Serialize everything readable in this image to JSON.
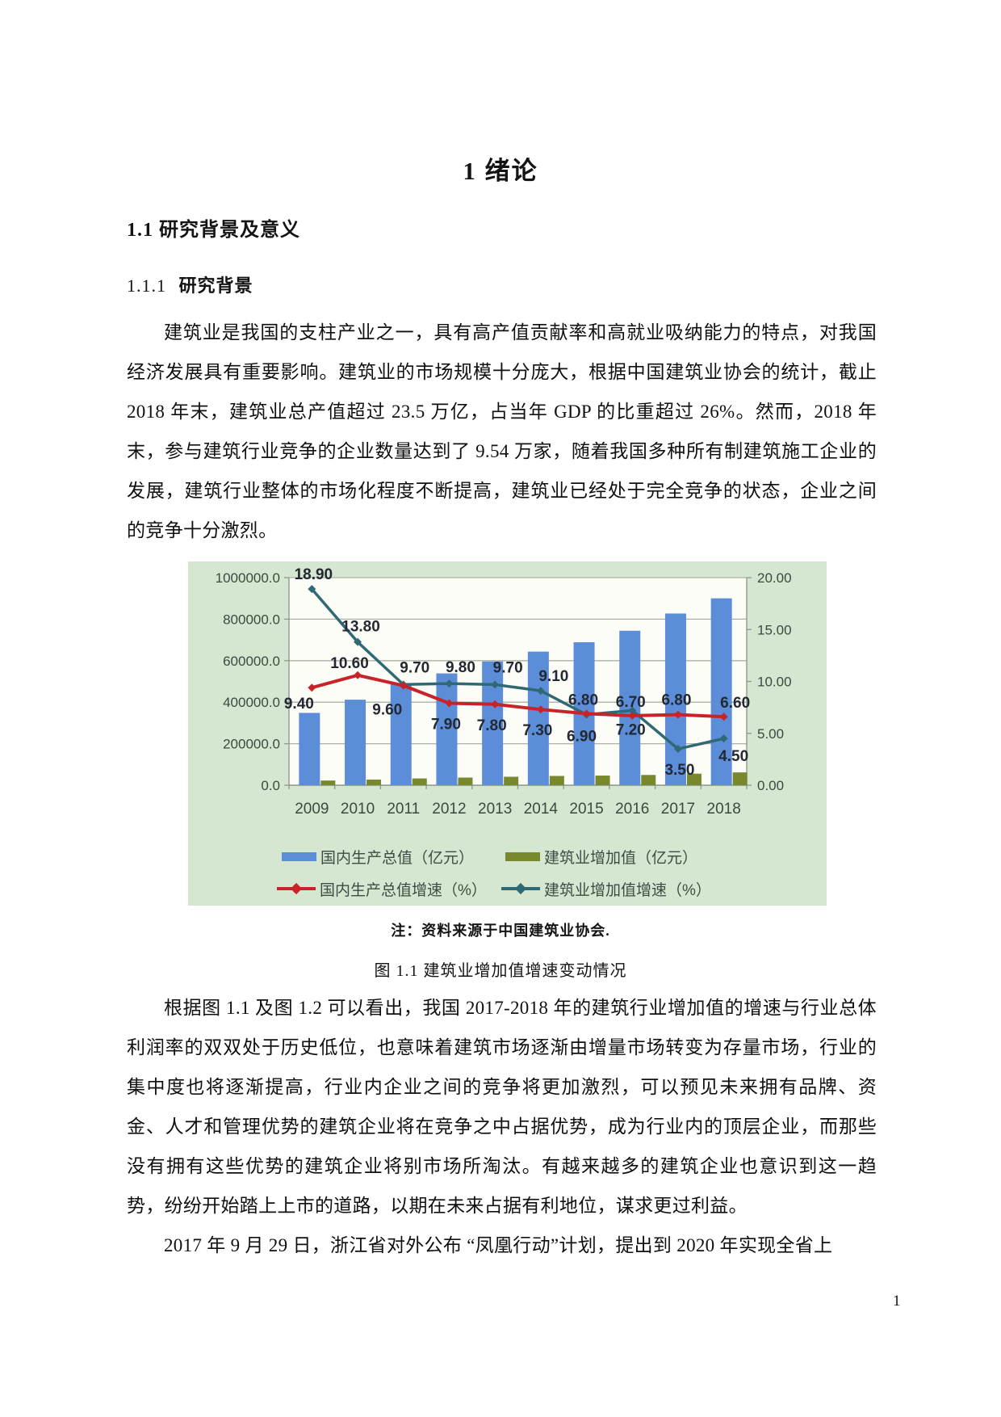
{
  "page": {
    "title": "1 绪论",
    "page_number": "1"
  },
  "sections": {
    "h2": "1.1 研究背景及意义",
    "h3_num": "1.1.1",
    "h3_title": "研究背景"
  },
  "paragraphs": {
    "p1": "建筑业是我国的支柱产业之一，具有高产值贡献率和高就业吸纳能力的特点，对我国经济发展具有重要影响。建筑业的市场规模十分庞大，根据中国建筑业协会的统计，截止 2018 年末，建筑业总产值超过 23.5 万亿，占当年 GDP 的比重超过 26%。然而，2018 年末，参与建筑行业竞争的企业数量达到了 9.54 万家，随着我国多种所有制建筑施工企业的发展，建筑行业整体的市场化程度不断提高，建筑业已经处于完全竞争的状态，企业之间的竞争十分激烈。",
    "p2": "根据图 1.1 及图 1.2 可以看出，我国 2017-2018 年的建筑行业增加值的增速与行业总体利润率的双双处于历史低位，也意味着建筑市场逐渐由增量市场转变为存量市场，行业的集中度也将逐渐提高，行业内企业之间的竞争将更加激烈，可以预见未来拥有品牌、资金、人才和管理优势的建筑企业将在竞争之中占据优势，成为行业内的顶层企业，而那些没有拥有这些优势的建筑企业将别市场所淘汰。有越来越多的建筑企业也意识到这一趋势，纷纷开始踏上上市的道路，以期在未来占据有利地位，谋求更过利益。",
    "p3": "2017 年 9 月 29 日，浙江省对外公布 “凤凰行动”计划，提出到 2020 年实现全省上"
  },
  "figure": {
    "note": "注：资料来源于中国建筑业协会.",
    "caption": "图 1.1 建筑业增加值增速变动情况"
  },
  "chart_data": {
    "type": "bar+line-combo",
    "categories": [
      "2009",
      "2010",
      "2011",
      "2012",
      "2013",
      "2014",
      "2015",
      "2016",
      "2017",
      "2018"
    ],
    "series": [
      {
        "name": "国内生产总值（亿元）",
        "type": "bar",
        "axis": "left",
        "color": "#5b8dd9",
        "values": [
          348500,
          412100,
          487900,
          538600,
          596300,
          643600,
          688900,
          744100,
          827100,
          900300
        ]
      },
      {
        "name": "建筑业增加值（亿元）",
        "type": "bar",
        "axis": "left",
        "color": "#78882d",
        "values": [
          22700,
          27300,
          32800,
          36900,
          40900,
          44800,
          46500,
          49500,
          55700,
          61800
        ]
      },
      {
        "name": "国内生产总值增速（%）",
        "type": "line",
        "axis": "right",
        "color": "#c9232a",
        "marker": "diamond",
        "values": [
          9.4,
          10.6,
          9.6,
          7.9,
          7.8,
          7.3,
          6.9,
          6.7,
          6.8,
          6.6
        ]
      },
      {
        "name": "建筑业增加值增速（%）",
        "type": "line",
        "axis": "right",
        "color": "#2f6a74",
        "marker": "diamond",
        "values": [
          18.9,
          13.8,
          9.7,
          9.8,
          9.7,
          9.1,
          6.8,
          7.2,
          3.5,
          4.5
        ]
      }
    ],
    "left_axis_ticks": [
      "1000000.0",
      "800000.0",
      "600000.0",
      "400000.0",
      "200000.0",
      "0.0"
    ],
    "right_axis_ticks": [
      "20.00",
      "15.00",
      "10.00",
      "5.00",
      "0.00"
    ],
    "left_axis_range": [
      0,
      1000000
    ],
    "right_axis_range": [
      0,
      20
    ],
    "grid": true,
    "legend_position": "bottom",
    "background": "#d5e7d0",
    "plot_background": "#fdfdf8"
  }
}
